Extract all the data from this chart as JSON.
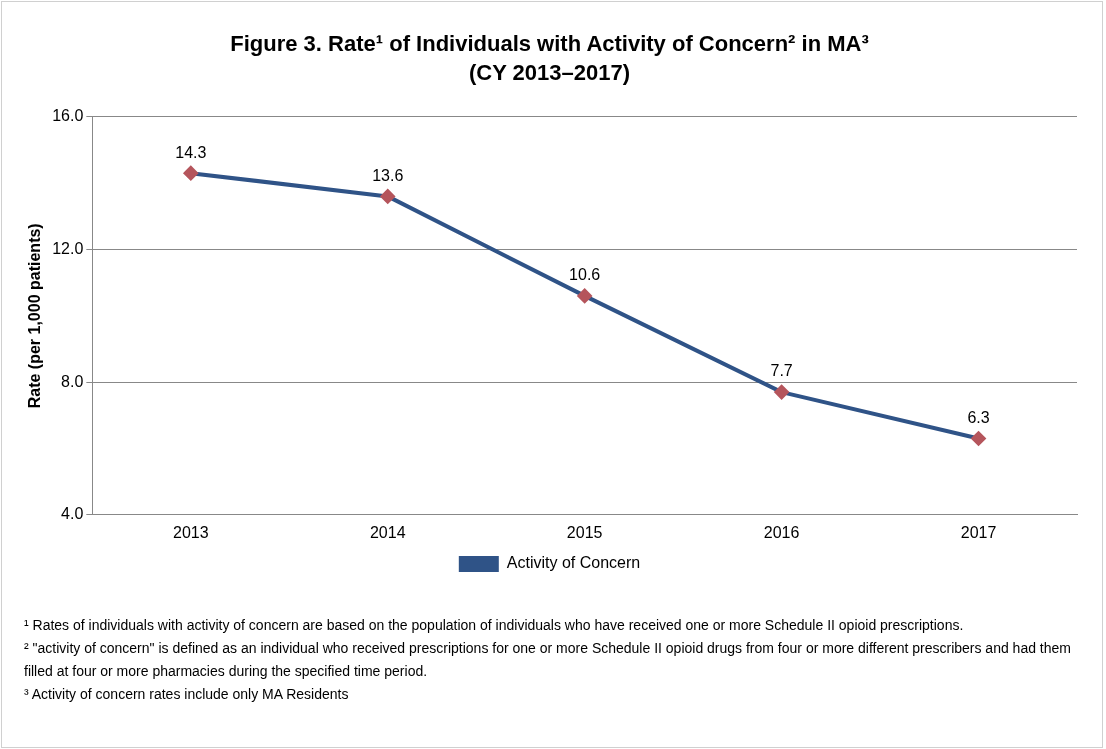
{
  "chart_data": {
    "type": "line",
    "title": "Figure 3. Rate¹ of Individuals with Activity of Concern² in MA³",
    "subtitle": "(CY 2013–2017)",
    "ylabel": "Rate (per 1,000 patients)",
    "categories": [
      "2013",
      "2014",
      "2015",
      "2016",
      "2017"
    ],
    "series": [
      {
        "name": "Activity of Concern",
        "color": "#2f5387",
        "colors": [
          "#b5555c",
          "#b5555c",
          "#b5555c",
          "#b5555c",
          "#b5555c"
        ],
        "values": [
          14.3,
          13.6,
          10.6,
          7.7,
          6.3
        ]
      }
    ],
    "ylim": [
      4,
      16
    ],
    "yticks": [
      {
        "value": 4,
        "label": "4.0"
      },
      {
        "value": 8,
        "label": "8.0"
      },
      {
        "value": 12,
        "label": "12.0"
      },
      {
        "value": 16,
        "label": "16.0"
      }
    ],
    "grid": "y",
    "legend": "bottom",
    "marker": "diamond",
    "line_style": "solid",
    "data_labels": true,
    "annotations": [
      "¹  Rates of individuals with activity of concern are based on the population of individuals who have received one or more Schedule II opioid prescriptions.",
      "² \"activity of concern\"  is defined as an individual  who received prescriptions for one or more  Schedule II opioid drugs from four or more different prescribers and had them filled at four or more pharmacies  during the  specified time period.",
      "³ Activity of concern rates include  only MA Residents"
    ]
  }
}
